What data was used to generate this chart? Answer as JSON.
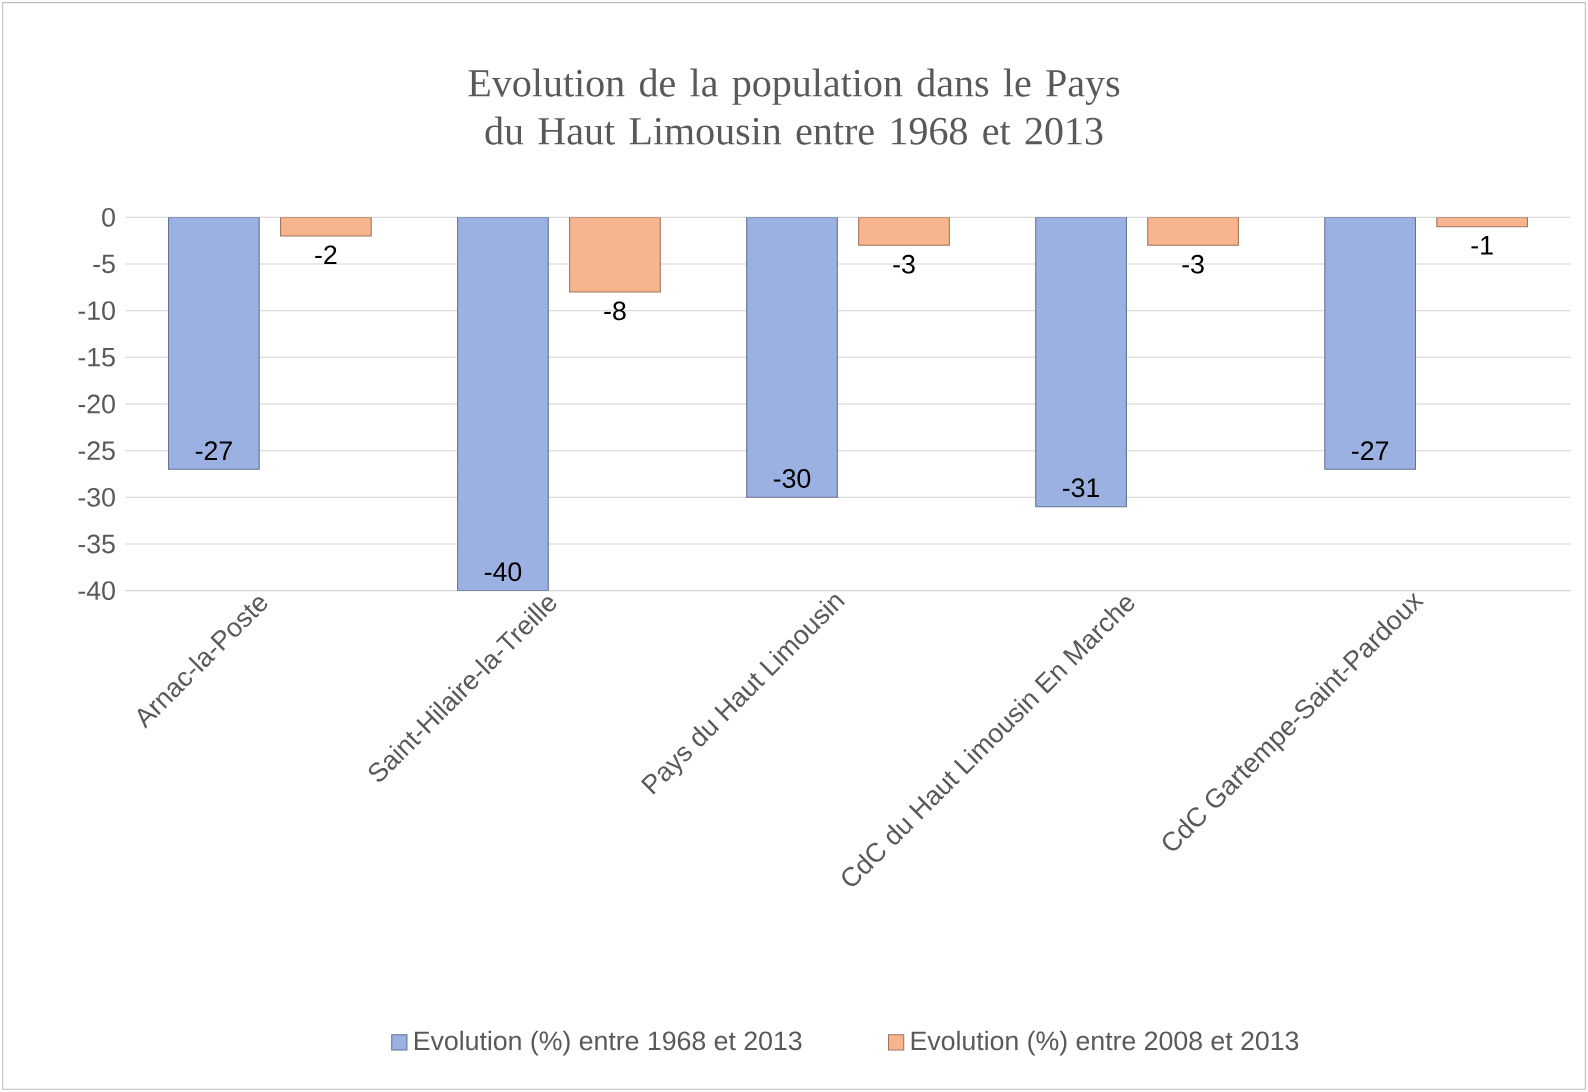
{
  "chart_data": {
    "type": "bar",
    "title": "Evolution de la population dans le Pays du Haut Limousin entre 1968 et 2013",
    "categories": [
      "Arnac-la-Poste",
      "Saint-Hilaire-la-Treille",
      "Pays du Haut Limousin",
      "CdC du Haut Limousin En Marche",
      "CdC Gartempe-Saint-Pardoux"
    ],
    "series": [
      {
        "name": "Evolution (%) entre 1968 et 2013",
        "color": "#9bb1e2",
        "values": [
          -27,
          -40,
          -30,
          -31,
          -27
        ]
      },
      {
        "name": "Evolution (%) entre 2008 et 2013",
        "color": "#f7b48f",
        "values": [
          -2,
          -8,
          -3,
          -3,
          -1
        ]
      }
    ],
    "ylim": [
      -40,
      0
    ],
    "yticks": [
      0,
      -5,
      -10,
      -15,
      -20,
      -25,
      -30,
      -35,
      -40
    ],
    "grid": "y",
    "legend": "bottom",
    "data_labels": true
  }
}
